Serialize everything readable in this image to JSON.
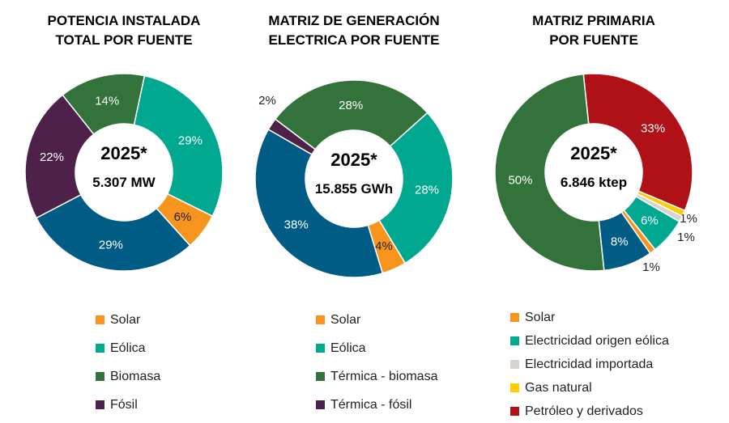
{
  "chart_data": [
    {
      "type": "pie",
      "title": "POTENCIA INSTALADA\nTOTAL POR FUENTE",
      "center": {
        "year": "2025*",
        "total": "5.307 MW"
      },
      "series": [
        {
          "name": "Eólica",
          "value": 29,
          "label": "29%",
          "color": "#00a88f"
        },
        {
          "name": "Solar",
          "value": 6,
          "label": "6%",
          "color": "#f7941d"
        },
        {
          "value": 29,
          "label": "29%",
          "color": "#005b85"
        },
        {
          "name": "Fósil",
          "value": 22,
          "label": "22%",
          "color": "#4d2149"
        },
        {
          "name": "Biomasa",
          "value": 14,
          "label": "14%",
          "color": "#33733b"
        }
      ],
      "legend": [
        {
          "name": "Solar",
          "color": "#f7941d"
        },
        {
          "name": "Eólica",
          "color": "#00a88f"
        },
        {
          "name": "Biomasa",
          "color": "#33733b"
        },
        {
          "name": "Fósil",
          "color": "#4d2149"
        }
      ]
    },
    {
      "type": "pie",
      "title": "MATRIZ DE GENERACIÓN\nELECTRICA POR FUENTE",
      "center": {
        "year": "2025*",
        "total": "15.855 GWh"
      },
      "series": [
        {
          "name": "Eólica",
          "value": 28,
          "label": "28%",
          "color": "#00a88f"
        },
        {
          "name": "Solar",
          "value": 4,
          "label": "4%",
          "color": "#f7941d"
        },
        {
          "value": 38,
          "label": "38%",
          "color": "#005b85"
        },
        {
          "name": "Térmica - fósil",
          "value": 2,
          "label": "2%",
          "color": "#4d2149"
        },
        {
          "name": "Térmica - biomasa",
          "value": 28,
          "label": "28%",
          "color": "#33733b"
        }
      ],
      "legend": [
        {
          "name": "Solar",
          "color": "#f7941d"
        },
        {
          "name": "Eólica",
          "color": "#00a88f"
        },
        {
          "name": "Térmica - biomasa",
          "color": "#33733b"
        },
        {
          "name": "Térmica - fósil",
          "color": "#4d2149"
        }
      ]
    },
    {
      "type": "pie",
      "title": "MATRIZ PRIMARIA\nPOR FUENTE",
      "center": {
        "year": "2025*",
        "total": "6.846 ktep"
      },
      "series": [
        {
          "name": "Petróleo y derivados",
          "value": 33,
          "label": "33%",
          "color": "#b01117"
        },
        {
          "name": "Gas natural",
          "value": 1,
          "label": "1%",
          "color": "#ffcc00"
        },
        {
          "name": "Electricidad importada",
          "value": 1,
          "label": "1%",
          "color": "#d9d3cf"
        },
        {
          "name": "Electricidad origen eólica",
          "value": 6,
          "label": "6%",
          "color": "#00a88f"
        },
        {
          "name": "Solar",
          "value": 1,
          "label": "1%",
          "color": "#f7941d"
        },
        {
          "value": 8,
          "label": "8%",
          "color": "#005b85"
        },
        {
          "value": 50,
          "label": "50%",
          "color": "#33733b"
        }
      ],
      "legend": [
        {
          "name": "Solar",
          "color": "#f7941d"
        },
        {
          "name": "Electricidad origen eólica",
          "color": "#00a88f"
        },
        {
          "name": "Electricidad importada",
          "color": "#d9d3cf"
        },
        {
          "name": "Gas natural",
          "color": "#ffcc00"
        },
        {
          "name": "Petróleo y derivados",
          "color": "#b01117"
        }
      ]
    }
  ]
}
